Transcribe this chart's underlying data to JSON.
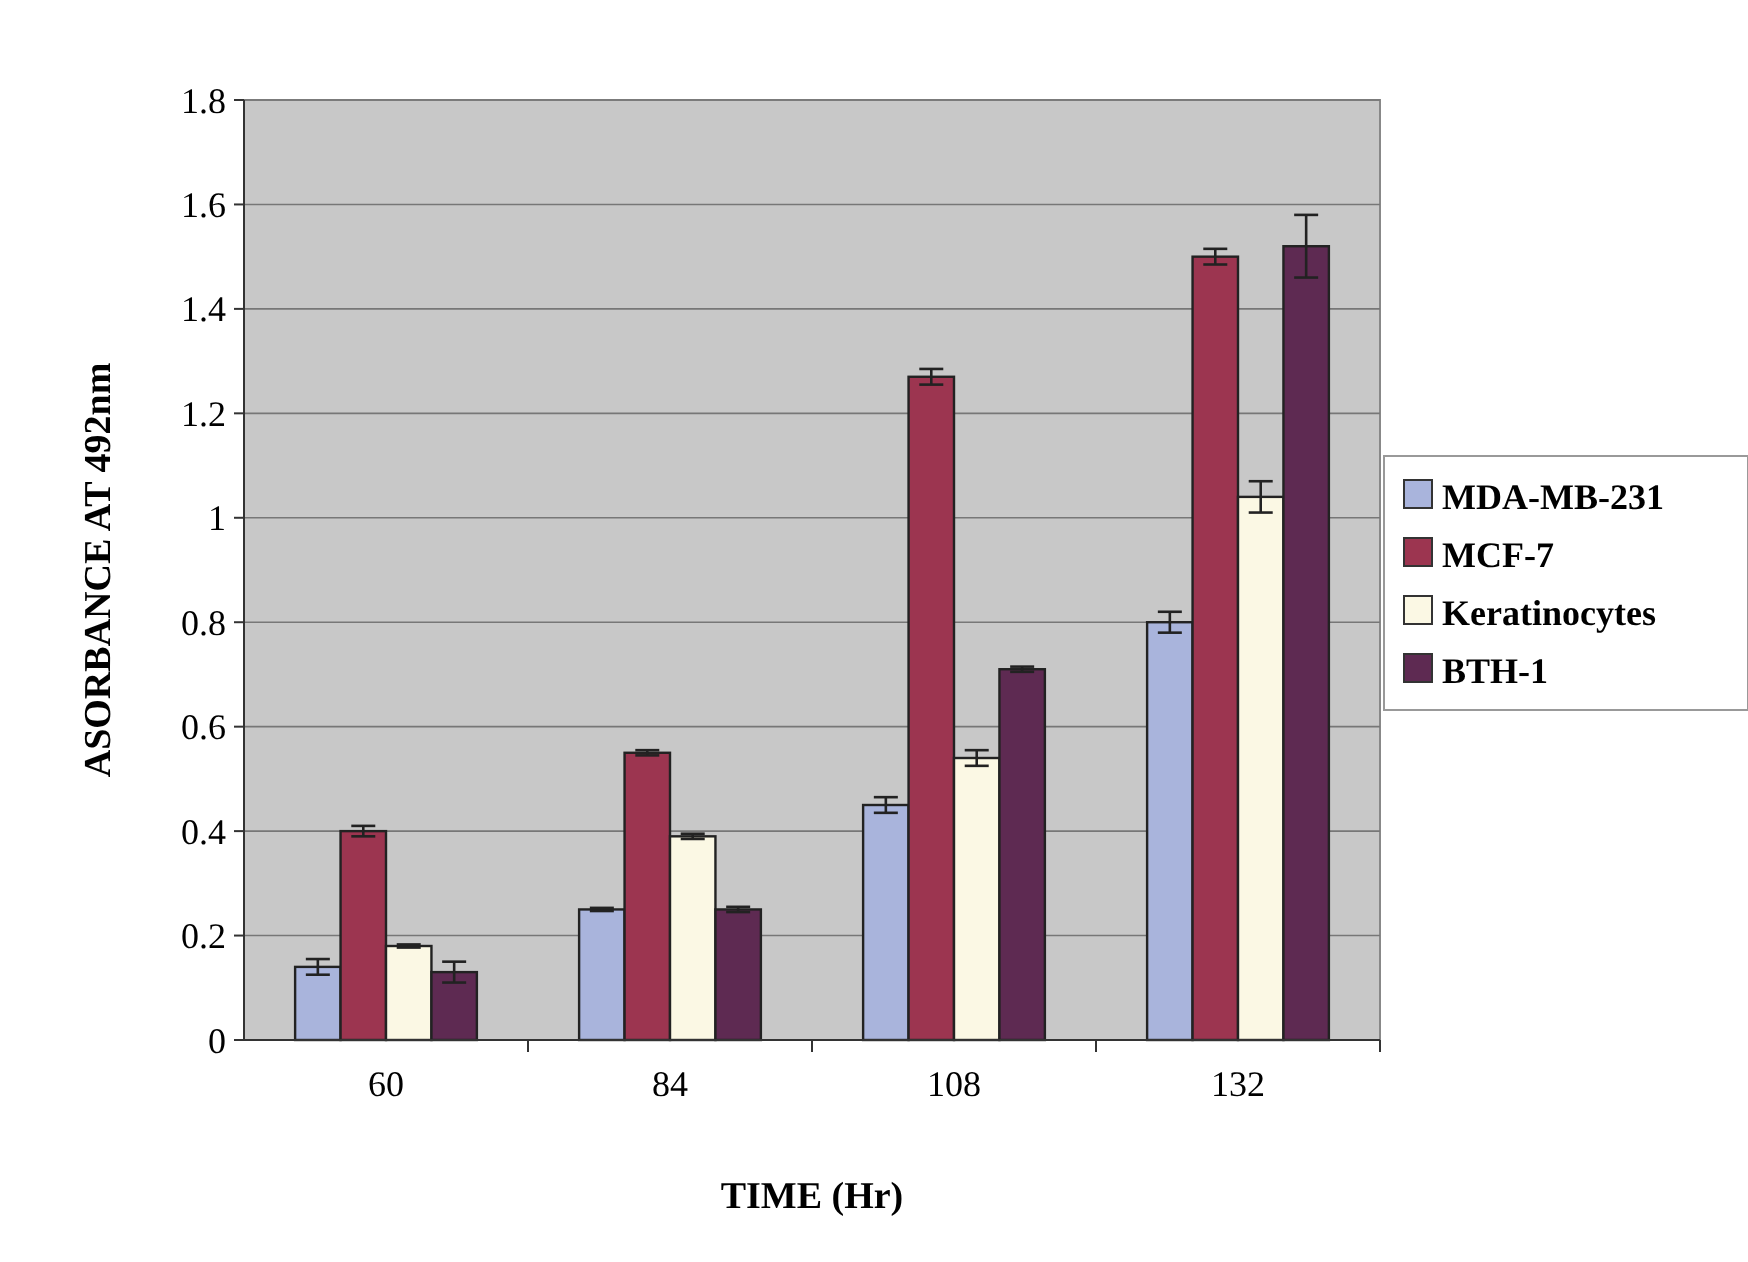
{
  "chart_data": {
    "type": "bar",
    "xlabel": "TIME (Hr)",
    "ylabel": "ASORBANCE AT 492nm",
    "categories": [
      "60",
      "84",
      "108",
      "132"
    ],
    "series": [
      {
        "name": "MDA-MB-231",
        "color": "#a9b4dc",
        "values": [
          0.14,
          0.25,
          0.45,
          0.8
        ],
        "errors": [
          0.015,
          0.003,
          0.015,
          0.02
        ]
      },
      {
        "name": "MCF-7",
        "color": "#9c3550",
        "values": [
          0.4,
          0.55,
          1.27,
          1.5
        ],
        "errors": [
          0.01,
          0.005,
          0.015,
          0.015
        ]
      },
      {
        "name": "Keratinocytes",
        "color": "#fbf8e4",
        "values": [
          0.18,
          0.39,
          0.54,
          1.04
        ],
        "errors": [
          0.003,
          0.005,
          0.015,
          0.03
        ]
      },
      {
        "name": "BTH-1",
        "color": "#5e2a52",
        "values": [
          0.13,
          0.25,
          0.71,
          1.52
        ],
        "errors": [
          0.02,
          0.005,
          0.005,
          0.06
        ]
      }
    ],
    "ylim": [
      0,
      1.8
    ],
    "yticks": [
      0,
      0.2,
      0.4,
      0.6,
      0.8,
      1,
      1.2,
      1.4,
      1.6,
      1.8
    ],
    "grid": "y",
    "legend": "right"
  }
}
